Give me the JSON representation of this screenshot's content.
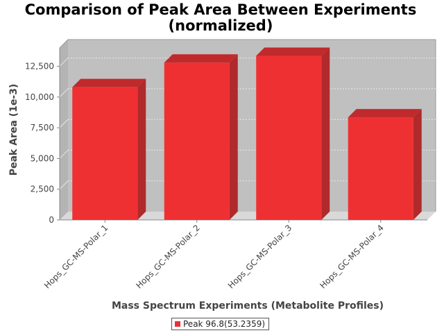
{
  "colors": {
    "bar_front": "#ef3033",
    "bar_side": "#b02a2b",
    "bar_top": "#c02a2d",
    "plot_back": "#c0c0c0",
    "plot_floor": "#d9d9d9",
    "grid": "#e8e8e8"
  },
  "chart_data": {
    "type": "bar",
    "title_line1": "Comparison of Peak Area Between Experiments",
    "title_line2": "(normalized)",
    "xlabel": "Mass Spectrum Experiments (Metabolite Profiles)",
    "ylabel": "Peak Area (1e-3)",
    "categories": [
      "Hops_GC-MS-Polar_1",
      "Hops_GC-MS-Polar_2",
      "Hops_GC-MS-Polar_3",
      "Hops_GC-MS-Polar_4"
    ],
    "series": [
      {
        "name": "Peak 96.8(53.2359)",
        "values": [
          10800,
          12800,
          13350,
          8350
        ]
      }
    ],
    "ylim": [
      0,
      14000
    ],
    "yticks": [
      0,
      2500,
      5000,
      7500,
      10000,
      12500
    ],
    "ytick_labels": [
      "0",
      "2,500",
      "5,000",
      "7,500",
      "10,000",
      "12,500"
    ],
    "grid": true,
    "legend_position": "bottom"
  }
}
